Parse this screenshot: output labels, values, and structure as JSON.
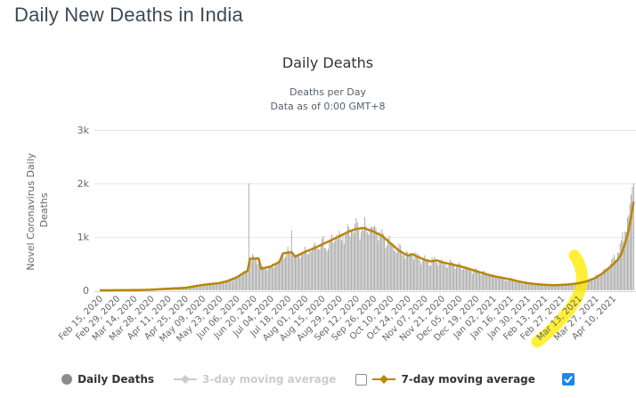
{
  "page": {
    "title": "Daily New Deaths in India"
  },
  "chart": {
    "title": "Daily Deaths",
    "subtitle_line1": "Deaths per Day",
    "subtitle_line2": "Data as of 0:00 GMT+8",
    "y_axis_title_line1": "Novel Coronavirus Daily",
    "y_axis_title_line2": "Deaths"
  },
  "legend": {
    "items": [
      {
        "label": "Daily Deaths",
        "marker": "circle",
        "color": "#8d8d8d",
        "enabled": true
      },
      {
        "label": "3-day moving average",
        "marker": "line-diamond",
        "color": "#cccccc",
        "enabled": false
      },
      {
        "label": "7-day moving average",
        "marker": "line-diamond",
        "color": "#b8860b",
        "enabled": true
      }
    ],
    "seven_day_checkbox_checked": false,
    "right_checkbox_checked": true,
    "checkmark": "✓"
  },
  "colors": {
    "bars": "#a6a6a6",
    "ma_line": "#b8860b",
    "grid": "#e6e6e6",
    "axis_line": "#ccd6eb",
    "highlighter": "#ffeb00",
    "checkbox_blue": "#1e88e5"
  },
  "chart_data": {
    "type": "bar",
    "title": "Daily Deaths",
    "subtitle": "Deaths per Day — Data as of 0:00 GMT+8",
    "xlabel": "",
    "ylabel": "Novel Coronavirus Daily Deaths",
    "ylim": [
      0,
      3000
    ],
    "y_tick_labels": [
      "0",
      "1k",
      "2k",
      "3k"
    ],
    "grid": true,
    "legend_position": "bottom",
    "start_date": "Feb 15, 2020",
    "days_total": 437,
    "x_tick_interval_days": 14,
    "x_tick_labels": [
      "Feb 15, 2020",
      "Feb 29, 2020",
      "Mar 14, 2020",
      "Mar 28, 2020",
      "Apr 11, 2020",
      "Apr 25, 2020",
      "May 09, 2020",
      "May 23, 2020",
      "Jun 06, 2020",
      "Jun 20, 2020",
      "Jul 04, 2020",
      "Jul 18, 2020",
      "Aug 01, 2020",
      "Aug 15, 2020",
      "Aug 29, 2020",
      "Sep 12, 2020",
      "Sep 26, 2020",
      "Oct 10, 2020",
      "Oct 24, 2020",
      "Nov 07, 2020",
      "Nov 21, 2020",
      "Dec 05, 2020",
      "Dec 19, 2020",
      "Jan 02, 2021",
      "Jan 16, 2021",
      "Jan 30, 2021",
      "Feb 13, 2021",
      "Feb 27, 2021",
      "Mar 13, 2021",
      "Mar 27, 2021",
      "Apr 10, 2021"
    ],
    "series": [
      {
        "name": "Daily Deaths",
        "type": "bar",
        "anchor_days": [
          0,
          14,
          28,
          42,
          56,
          70,
          84,
          98,
          105,
          112,
          119,
          121,
          123,
          130,
          132,
          140,
          147,
          150,
          157,
          160,
          168,
          175,
          182,
          189,
          196,
          203,
          210,
          216,
          224,
          231,
          238,
          245,
          252,
          256,
          260,
          266,
          271,
          276,
          281,
          287,
          294,
          301,
          308,
          315,
          322,
          329,
          336,
          343,
          350,
          357,
          364,
          371,
          378,
          385,
          392,
          399,
          406,
          413,
          417,
          420,
          423,
          426,
          429,
          431,
          433,
          435,
          437
        ],
        "anchor_values": [
          0,
          1,
          3,
          10,
          30,
          45,
          100,
          135,
          175,
          240,
          340,
          365,
          590,
          595,
          405,
          445,
          530,
          690,
          715,
          630,
          720,
          780,
          860,
          930,
          1010,
          1090,
          1150,
          1165,
          1100,
          1020,
          880,
          740,
          650,
          675,
          630,
          570,
          540,
          560,
          520,
          490,
          455,
          410,
          360,
          310,
          265,
          235,
          205,
          165,
          135,
          115,
          102,
          96,
          100,
          112,
          132,
          170,
          235,
          350,
          420,
          560,
          660,
          800,
          1000,
          1200,
          1450,
          1750,
          2080
        ],
        "outlier_spikes": [
          {
            "day": 122,
            "date": "Jun 16, 2020",
            "value": 2003
          },
          {
            "day": 157,
            "date": "Jul 21, 2020",
            "value": 1120
          }
        ]
      },
      {
        "name": "3-day moving average",
        "type": "line",
        "visible": false
      },
      {
        "name": "7-day moving average",
        "type": "line",
        "anchor_days": [
          0,
          14,
          28,
          42,
          56,
          70,
          84,
          98,
          105,
          112,
          119,
          121,
          123,
          130,
          132,
          140,
          147,
          150,
          157,
          160,
          168,
          175,
          182,
          189,
          196,
          203,
          210,
          216,
          224,
          231,
          238,
          245,
          252,
          256,
          260,
          266,
          271,
          276,
          281,
          287,
          294,
          301,
          308,
          315,
          322,
          329,
          336,
          343,
          350,
          357,
          364,
          371,
          378,
          385,
          392,
          399,
          406,
          413,
          420,
          424,
          427,
          430,
          433,
          435,
          437
        ],
        "anchor_values": [
          0,
          1,
          3,
          10,
          30,
          45,
          100,
          135,
          175,
          240,
          340,
          365,
          590,
          595,
          405,
          445,
          530,
          690,
          715,
          630,
          720,
          780,
          860,
          930,
          1010,
          1090,
          1150,
          1165,
          1100,
          1020,
          880,
          740,
          650,
          675,
          630,
          570,
          540,
          560,
          520,
          490,
          455,
          410,
          360,
          310,
          265,
          235,
          205,
          165,
          135,
          115,
          102,
          96,
          100,
          112,
          132,
          170,
          235,
          340,
          480,
          570,
          680,
          880,
          1130,
          1380,
          1660
        ]
      }
    ],
    "annotation": {
      "type": "highlighter-mark",
      "highlighted_label": "Mar 13, 2021"
    }
  }
}
